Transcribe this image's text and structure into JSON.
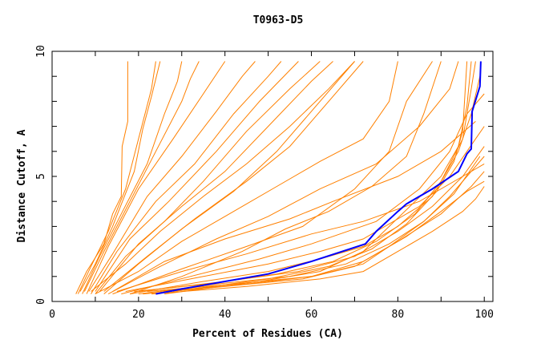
{
  "chart_data": {
    "type": "line",
    "title": "T0963-D5",
    "xlabel": "Percent of Residues (CA)",
    "ylabel": "Distance Cutoff, A",
    "xlim": [
      0,
      102
    ],
    "ylim": [
      0,
      10
    ],
    "x_ticks": [
      0,
      20,
      40,
      60,
      80,
      100
    ],
    "x_minor_ticks": [
      10,
      30,
      50,
      70,
      90
    ],
    "y_ticks": [
      0,
      5,
      10
    ],
    "y_minor_ticks": [
      1,
      2,
      3,
      4,
      6,
      7,
      8,
      9
    ],
    "grid": false,
    "colors": {
      "models": "#ff8000",
      "highlight": "#0000ff"
    },
    "highlight_series": {
      "points": [
        [
          24,
          0.3
        ],
        [
          30,
          0.5
        ],
        [
          40,
          0.8
        ],
        [
          50,
          1.1
        ],
        [
          56,
          1.4
        ],
        [
          60,
          1.6
        ],
        [
          72.5,
          2.3
        ],
        [
          75,
          2.8
        ],
        [
          80,
          3.6
        ],
        [
          82,
          3.9
        ],
        [
          88,
          4.5
        ],
        [
          94,
          5.2
        ],
        [
          96,
          5.9
        ],
        [
          97,
          6.1
        ],
        [
          97.2,
          7.6
        ],
        [
          99,
          8.6
        ],
        [
          99.2,
          9.6
        ]
      ]
    },
    "series": [
      {
        "points": [
          [
            5.5,
            0.3
          ],
          [
            8,
            1.2
          ],
          [
            12,
            2.3
          ],
          [
            14,
            3.5
          ],
          [
            16,
            4.2
          ],
          [
            16.2,
            6.2
          ],
          [
            17.5,
            7.2
          ],
          [
            17.5,
            9.6
          ]
        ]
      },
      {
        "points": [
          [
            6,
            0.3
          ],
          [
            9,
            1.4
          ],
          [
            13,
            2.8
          ],
          [
            17,
            4.5
          ],
          [
            20,
            6.5
          ],
          [
            23,
            8.5
          ],
          [
            24,
            9.6
          ]
        ]
      },
      {
        "points": [
          [
            6.5,
            0.4
          ],
          [
            10,
            1.5
          ],
          [
            14,
            3.0
          ],
          [
            19,
            5.2
          ],
          [
            21,
            6.9
          ],
          [
            23,
            8.2
          ],
          [
            25,
            9.6
          ]
        ]
      },
      {
        "points": [
          [
            7,
            0.3
          ],
          [
            11,
            1.8
          ],
          [
            16,
            3.5
          ],
          [
            22,
            5.5
          ],
          [
            26,
            7.5
          ],
          [
            29,
            8.8
          ],
          [
            30,
            9.6
          ]
        ]
      },
      {
        "points": [
          [
            7.5,
            0.4
          ],
          [
            12,
            2.0
          ],
          [
            18,
            4.0
          ],
          [
            24,
            6.0
          ],
          [
            30,
            8.0
          ],
          [
            32,
            8.9
          ],
          [
            34,
            9.6
          ]
        ]
      },
      {
        "points": [
          [
            8,
            0.3
          ],
          [
            13,
            2.2
          ],
          [
            20,
            4.5
          ],
          [
            28,
            6.5
          ],
          [
            35,
            8.3
          ],
          [
            40,
            9.6
          ]
        ]
      },
      {
        "points": [
          [
            8.5,
            0.4
          ],
          [
            14,
            1.9
          ],
          [
            22,
            4.2
          ],
          [
            30,
            5.8
          ],
          [
            38,
            7.6
          ],
          [
            44,
            9.0
          ],
          [
            47,
            9.6
          ]
        ]
      },
      {
        "points": [
          [
            9,
            0.3
          ],
          [
            15,
            2.0
          ],
          [
            24,
            4.0
          ],
          [
            33,
            5.5
          ],
          [
            42,
            7.5
          ],
          [
            50,
            9.0
          ],
          [
            53,
            9.6
          ]
        ]
      },
      {
        "points": [
          [
            10,
            0.4
          ],
          [
            18,
            2.5
          ],
          [
            27,
            4.0
          ],
          [
            38,
            6.0
          ],
          [
            48,
            8.0
          ],
          [
            57,
            9.6
          ]
        ]
      },
      {
        "points": [
          [
            10,
            0.3
          ],
          [
            17,
            1.8
          ],
          [
            26,
            3.2
          ],
          [
            35,
            4.8
          ],
          [
            45,
            6.8
          ],
          [
            55,
            8.5
          ],
          [
            62,
            9.6
          ]
        ]
      },
      {
        "points": [
          [
            11,
            0.4
          ],
          [
            20,
            2.3
          ],
          [
            30,
            3.8
          ],
          [
            40,
            5.2
          ],
          [
            50,
            7.0
          ],
          [
            60,
            8.8
          ],
          [
            65,
            9.6
          ]
        ]
      },
      {
        "points": [
          [
            12,
            0.3
          ],
          [
            20,
            1.5
          ],
          [
            30,
            2.9
          ],
          [
            42,
            4.4
          ],
          [
            52,
            6.0
          ],
          [
            62,
            8.0
          ],
          [
            70,
            9.6
          ]
        ]
      },
      {
        "points": [
          [
            12,
            0.4
          ],
          [
            22,
            1.8
          ],
          [
            33,
            3.3
          ],
          [
            45,
            4.8
          ],
          [
            55,
            6.2
          ],
          [
            65,
            8.2
          ],
          [
            72,
            9.6
          ]
        ]
      },
      {
        "points": [
          [
            13,
            0.3
          ],
          [
            25,
            1.4
          ],
          [
            38,
            2.5
          ],
          [
            50,
            3.4
          ],
          [
            62,
            4.5
          ],
          [
            75,
            5.5
          ],
          [
            85,
            7.0
          ],
          [
            92,
            8.5
          ],
          [
            94,
            9.6
          ]
        ]
      },
      {
        "points": [
          [
            14,
            0.4
          ],
          [
            26,
            1.6
          ],
          [
            40,
            2.5
          ],
          [
            55,
            3.3
          ],
          [
            65,
            4.0
          ],
          [
            80,
            5.0
          ],
          [
            90,
            6.0
          ],
          [
            98,
            7.2
          ]
        ]
      },
      {
        "points": [
          [
            14,
            0.3
          ],
          [
            30,
            1.3
          ],
          [
            45,
            2.2
          ],
          [
            58,
            3.0
          ],
          [
            70,
            4.5
          ],
          [
            78,
            6.0
          ],
          [
            82,
            8.0
          ],
          [
            88,
            9.6
          ]
        ]
      },
      {
        "points": [
          [
            15,
            0.4
          ],
          [
            30,
            1.2
          ],
          [
            45,
            1.9
          ],
          [
            60,
            2.7
          ],
          [
            72,
            3.2
          ],
          [
            85,
            4.0
          ],
          [
            95,
            5.0
          ],
          [
            100,
            5.5
          ]
        ]
      },
      {
        "points": [
          [
            16,
            0.3
          ],
          [
            32,
            1.0
          ],
          [
            48,
            1.7
          ],
          [
            60,
            2.3
          ],
          [
            75,
            3.2
          ],
          [
            85,
            4.5
          ],
          [
            92,
            6.0
          ],
          [
            96,
            7.5
          ],
          [
            100,
            8.3
          ]
        ]
      },
      {
        "points": [
          [
            17,
            0.4
          ],
          [
            35,
            1.0
          ],
          [
            50,
            1.5
          ],
          [
            62,
            2.0
          ],
          [
            72,
            2.5
          ],
          [
            85,
            3.8
          ],
          [
            92,
            5.0
          ],
          [
            98,
            6.5
          ],
          [
            100,
            7.0
          ]
        ]
      },
      {
        "points": [
          [
            18,
            0.3
          ],
          [
            35,
            0.8
          ],
          [
            50,
            1.2
          ],
          [
            62,
            1.7
          ],
          [
            72,
            2.2
          ],
          [
            80,
            3.0
          ],
          [
            88,
            4.2
          ],
          [
            94,
            6.0
          ],
          [
            97,
            7.5
          ],
          [
            99,
            9.0
          ]
        ]
      },
      {
        "points": [
          [
            19,
            0.4
          ],
          [
            36,
            0.7
          ],
          [
            52,
            1.1
          ],
          [
            65,
            1.6
          ],
          [
            75,
            2.4
          ],
          [
            84,
            3.5
          ],
          [
            90,
            4.8
          ],
          [
            95,
            6.5
          ],
          [
            97,
            8.5
          ],
          [
            98,
            9.6
          ]
        ]
      },
      {
        "points": [
          [
            20,
            0.3
          ],
          [
            38,
            0.7
          ],
          [
            55,
            1.0
          ],
          [
            68,
            1.5
          ],
          [
            78,
            2.3
          ],
          [
            86,
            3.2
          ],
          [
            93,
            4.3
          ],
          [
            99,
            5.8
          ]
        ]
      },
      {
        "points": [
          [
            20,
            0.4
          ],
          [
            40,
            0.8
          ],
          [
            57,
            1.2
          ],
          [
            70,
            1.8
          ],
          [
            80,
            2.8
          ],
          [
            88,
            3.8
          ],
          [
            95,
            5.0
          ],
          [
            100,
            6.2
          ]
        ]
      },
      {
        "points": [
          [
            21,
            0.3
          ],
          [
            40,
            0.6
          ],
          [
            58,
            0.9
          ],
          [
            70,
            1.4
          ],
          [
            80,
            2.4
          ],
          [
            90,
            3.5
          ],
          [
            97,
            4.6
          ],
          [
            100,
            5.2
          ]
        ]
      },
      {
        "points": [
          [
            22,
            0.4
          ],
          [
            42,
            0.7
          ],
          [
            60,
            1.0
          ],
          [
            72,
            1.6
          ],
          [
            82,
            2.6
          ],
          [
            90,
            3.6
          ],
          [
            96,
            4.4
          ],
          [
            100,
            4.8
          ]
        ]
      },
      {
        "points": [
          [
            23,
            0.3
          ],
          [
            45,
            0.6
          ],
          [
            62,
            0.9
          ],
          [
            72,
            1.2
          ],
          [
            80,
            2.0
          ],
          [
            88,
            2.8
          ],
          [
            95,
            3.6
          ],
          [
            98,
            4.1
          ],
          [
            100,
            4.6
          ]
        ]
      },
      {
        "points": [
          [
            25,
            0.4
          ],
          [
            45,
            0.7
          ],
          [
            60,
            1.0
          ],
          [
            72,
            1.5
          ],
          [
            78,
            2.2
          ],
          [
            86,
            3.2
          ],
          [
            92,
            4.2
          ],
          [
            96,
            5.0
          ],
          [
            100,
            5.8
          ]
        ]
      },
      {
        "points": [
          [
            26,
            0.3
          ],
          [
            48,
            0.8
          ],
          [
            62,
            1.2
          ],
          [
            72,
            2.0
          ],
          [
            78,
            3.0
          ],
          [
            84,
            4.0
          ],
          [
            90,
            5.0
          ],
          [
            94,
            6.2
          ],
          [
            96,
            7.8
          ],
          [
            97,
            9.6
          ]
        ]
      },
      {
        "points": [
          [
            28,
            0.4
          ],
          [
            50,
            0.9
          ],
          [
            64,
            1.4
          ],
          [
            74,
            2.1
          ],
          [
            82,
            3.1
          ],
          [
            89,
            4.4
          ],
          [
            93,
            5.6
          ],
          [
            95,
            6.8
          ],
          [
            96,
            9.6
          ]
        ]
      },
      {
        "points": [
          [
            18,
            0.3
          ],
          [
            30,
            1.0
          ],
          [
            44,
            2.0
          ],
          [
            54,
            2.9
          ],
          [
            64,
            3.6
          ],
          [
            74,
            4.6
          ],
          [
            82,
            5.8
          ],
          [
            86,
            7.5
          ],
          [
            90,
            9.6
          ]
        ]
      },
      {
        "points": [
          [
            10,
            0.3
          ],
          [
            20,
            1.2
          ],
          [
            30,
            2.4
          ],
          [
            40,
            3.4
          ],
          [
            52,
            4.6
          ],
          [
            62,
            5.6
          ],
          [
            72,
            6.5
          ],
          [
            78,
            8.0
          ],
          [
            80,
            9.6
          ]
        ]
      },
      {
        "points": [
          [
            9,
            0.4
          ],
          [
            17,
            1.5
          ],
          [
            25,
            2.8
          ],
          [
            35,
            4.2
          ],
          [
            45,
            5.5
          ],
          [
            55,
            7.0
          ],
          [
            64,
            8.5
          ],
          [
            70,
            9.6
          ]
        ]
      }
    ]
  }
}
